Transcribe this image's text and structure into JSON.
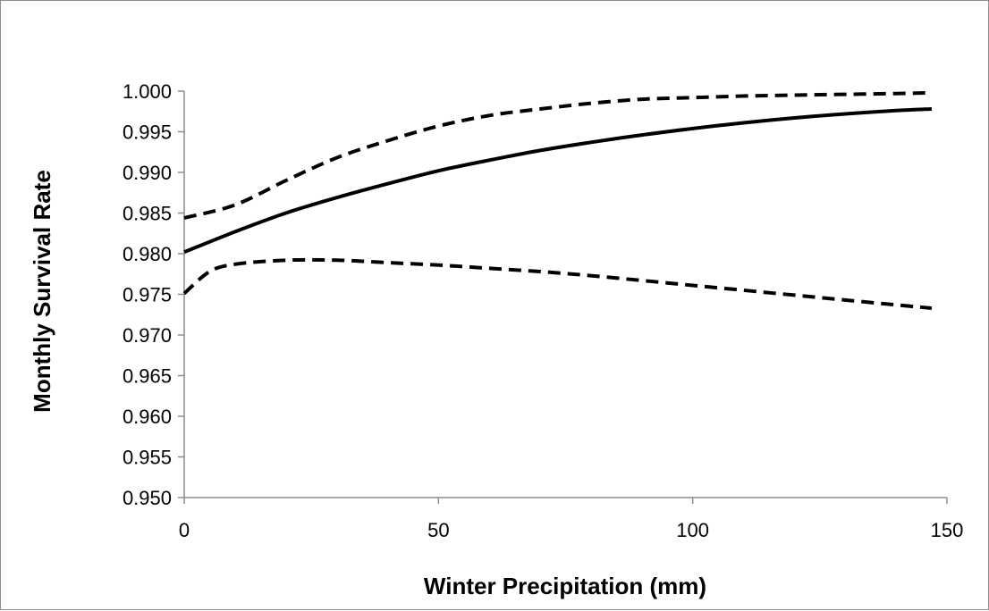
{
  "chart_data": {
    "type": "line",
    "title": "",
    "xlabel": "Winter Precipitation (mm)",
    "ylabel": "Monthly Survival Rate",
    "xlim": [
      0,
      150
    ],
    "ylim": [
      0.95,
      1.0
    ],
    "x_ticks": [
      "0",
      "50",
      "100",
      "150"
    ],
    "y_ticks": [
      "0.950",
      "0.955",
      "0.960",
      "0.965",
      "0.970",
      "0.975",
      "0.980",
      "0.985",
      "0.990",
      "0.995",
      "1.000"
    ],
    "grid": false,
    "legend": "none",
    "series": [
      {
        "style": "solid",
        "color": "#000000",
        "x": [
          0,
          10,
          20,
          30,
          40,
          50,
          60,
          70,
          80,
          90,
          100,
          110,
          120,
          130,
          140,
          147
        ],
        "y": [
          0.9802,
          0.9827,
          0.985,
          0.9869,
          0.9886,
          0.9902,
          0.9915,
          0.9927,
          0.9937,
          0.9946,
          0.9954,
          0.9961,
          0.9967,
          0.9972,
          0.9976,
          0.9978
        ]
      },
      {
        "style": "dashed",
        "color": "#000000",
        "x": [
          0,
          10,
          20,
          30,
          40,
          50,
          60,
          70,
          80,
          90,
          100,
          110,
          120,
          130,
          140,
          147
        ],
        "y": [
          0.9844,
          0.986,
          0.989,
          0.9918,
          0.9939,
          0.9957,
          0.997,
          0.9978,
          0.9985,
          0.999,
          0.9992,
          0.9994,
          0.9995,
          0.9996,
          0.9997,
          0.9998
        ]
      },
      {
        "style": "dashed",
        "color": "#000000",
        "x": [
          0,
          5,
          10,
          20,
          30,
          40,
          50,
          60,
          70,
          80,
          90,
          100,
          110,
          120,
          130,
          140,
          147
        ],
        "y": [
          0.9751,
          0.9778,
          0.9787,
          0.9792,
          0.9792,
          0.9789,
          0.9786,
          0.9782,
          0.9778,
          0.9773,
          0.9767,
          0.9761,
          0.9755,
          0.9749,
          0.9743,
          0.9737,
          0.9733
        ]
      }
    ]
  }
}
